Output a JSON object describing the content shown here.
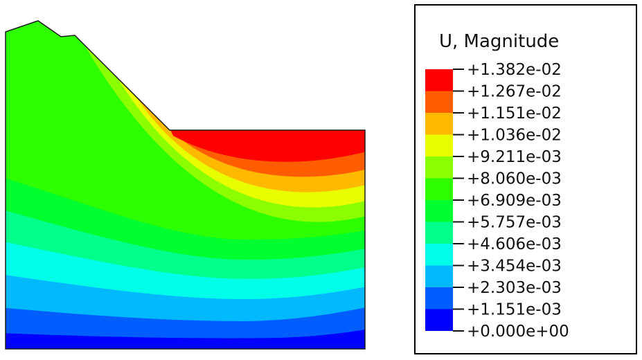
{
  "legend": {
    "title": "U, Magnitude",
    "values": [
      "+1.382e-02",
      "+1.267e-02",
      "+1.151e-02",
      "+1.036e-02",
      "+9.211e-03",
      "+8.060e-03",
      "+6.909e-03",
      "+5.757e-03",
      "+4.606e-03",
      "+3.454e-03",
      "+2.303e-03",
      "+1.151e-03",
      "+0.000e+00"
    ]
  },
  "chart_data": {
    "type": "heatmap",
    "subtype": "filled-contour-fea-result",
    "title": "U, Magnitude",
    "field": "U, Magnitude (displacement magnitude)",
    "contour_levels": [
      0.01382,
      0.01267,
      0.01151,
      0.01036,
      0.009211,
      0.00806,
      0.006909,
      0.005757,
      0.004606,
      0.003454,
      0.002303,
      0.001151,
      0.0
    ],
    "level_labels": [
      "+1.382e-02",
      "+1.267e-02",
      "+1.151e-02",
      "+1.036e-02",
      "+9.211e-03",
      "+8.060e-03",
      "+6.909e-03",
      "+5.757e-03",
      "+4.606e-03",
      "+3.454e-03",
      "+2.303e-03",
      "+1.151e-03",
      "+0.000e+00"
    ],
    "band_colors": [
      "#FF0000",
      "#FF5D00",
      "#FFB900",
      "#E8FF00",
      "#8BFF00",
      "#2EFF00",
      "#00FF2E",
      "#00FF8B",
      "#00FFE8",
      "#00B9FF",
      "#005DFF",
      "#0000FF"
    ],
    "value_range": [
      0.0,
      0.01382
    ],
    "num_intervals": 12,
    "legend_position": "right",
    "geometry": "2D slope / embankment cross-section: high plateau at upper left stepping down a slope face to a lower flat surface extending to the right edge",
    "gradient_direction": "maximum displacement (red band) along the lower plateau surface at upper right; values decrease downward to minimum (dark blue) along the base; bands curve upward along the slope face toward the upper-left crest"
  }
}
